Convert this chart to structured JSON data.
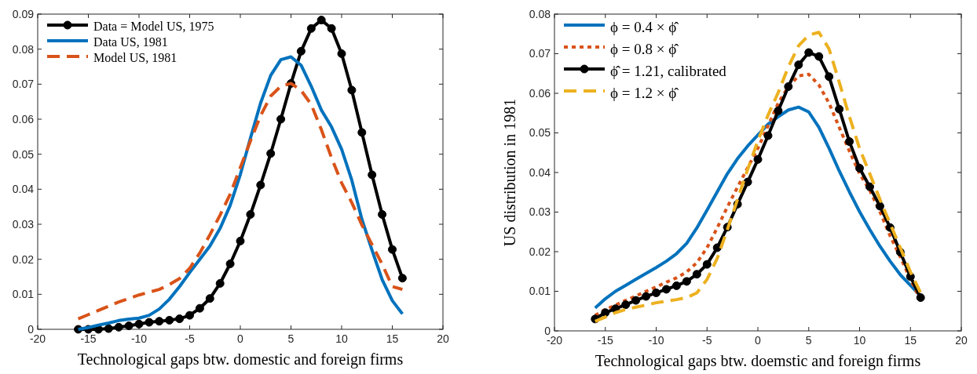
{
  "chart_data": [
    {
      "type": "line",
      "xlabel": "Technological gaps btw. domestic and foreign firms",
      "x": [
        -16,
        -15,
        -14,
        -13,
        -12,
        -11,
        -10,
        -9,
        -8,
        -7,
        -6,
        -5,
        -4,
        -3,
        -2,
        -1,
        0,
        1,
        2,
        3,
        4,
        5,
        6,
        7,
        8,
        9,
        10,
        11,
        12,
        13,
        14,
        15,
        16
      ],
      "xlim": [
        -20,
        20
      ],
      "xticks": [
        -20,
        -15,
        -10,
        -5,
        0,
        5,
        10,
        15,
        20
      ],
      "ylim": [
        0,
        0.09
      ],
      "yticks": [
        0,
        0.01,
        0.02,
        0.03,
        0.04,
        0.05,
        0.06,
        0.07,
        0.08,
        0.09
      ],
      "legend": "top left",
      "grid": false,
      "series": [
        {
          "name": "Data = Model US, 1975",
          "color": "#000000",
          "marker": "circle",
          "line_style": "solid",
          "values": [
            0,
            0,
            0,
            0.0002,
            0.0006,
            0.001,
            0.0015,
            0.002,
            0.0023,
            0.0026,
            0.003,
            0.004,
            0.006,
            0.0088,
            0.0131,
            0.0187,
            0.0252,
            0.0328,
            0.0412,
            0.0502,
            0.06,
            0.0702,
            0.0794,
            0.0859,
            0.0883,
            0.0859,
            0.0787,
            0.0683,
            0.0562,
            0.0441,
            0.0328,
            0.0228,
            0.0146
          ]
        },
        {
          "name": "Data US, 1981",
          "color": "#0072bd",
          "marker": "none",
          "line_style": "solid",
          "values": [
            0,
            0.0005,
            0.0012,
            0.0018,
            0.0025,
            0.0029,
            0.0032,
            0.004,
            0.0058,
            0.0086,
            0.0122,
            0.0162,
            0.02,
            0.0238,
            0.0288,
            0.0354,
            0.0442,
            0.0546,
            0.0646,
            0.0725,
            0.077,
            0.0778,
            0.0754,
            0.0694,
            0.0626,
            0.0578,
            0.0514,
            0.0426,
            0.0314,
            0.0226,
            0.0142,
            0.0082,
            0.0044
          ]
        },
        {
          "name": "Model US, 1981",
          "color": "#d95319",
          "marker": "none",
          "line_style": "dashed",
          "values": [
            0.003,
            0.0042,
            0.0054,
            0.0066,
            0.0078,
            0.0088,
            0.0098,
            0.0106,
            0.0114,
            0.0128,
            0.0145,
            0.0174,
            0.0218,
            0.027,
            0.0326,
            0.0386,
            0.0462,
            0.0538,
            0.061,
            0.0666,
            0.0694,
            0.0702,
            0.0682,
            0.0642,
            0.057,
            0.049,
            0.0418,
            0.0362,
            0.0298,
            0.0242,
            0.0186,
            0.0122,
            0.0114
          ]
        }
      ]
    },
    {
      "type": "line",
      "xlabel": "Technological gaps btw. doemstic and foreign firms",
      "ylabel": "US distribution in 1981",
      "x": [
        -16,
        -15,
        -14,
        -13,
        -12,
        -11,
        -10,
        -9,
        -8,
        -7,
        -6,
        -5,
        -4,
        -3,
        -2,
        -1,
        0,
        1,
        2,
        3,
        4,
        5,
        6,
        7,
        8,
        9,
        10,
        11,
        12,
        13,
        14,
        15,
        16
      ],
      "xlim": [
        -20,
        20
      ],
      "xticks": [
        -20,
        -15,
        -10,
        -5,
        0,
        5,
        10,
        15,
        20
      ],
      "ylim": [
        0,
        0.08
      ],
      "yticks": [
        0,
        0.01,
        0.02,
        0.03,
        0.04,
        0.05,
        0.06,
        0.07,
        0.08
      ],
      "legend": "top left",
      "grid": false,
      "series": [
        {
          "name": "ϕ = 0.4 × ϕ̂",
          "color": "#0072bd",
          "marker": "none",
          "line_style": "solid",
          "values": [
            0.0058,
            0.0081,
            0.01,
            0.0115,
            0.013,
            0.0145,
            0.016,
            0.0176,
            0.0195,
            0.0221,
            0.026,
            0.0305,
            0.0351,
            0.0397,
            0.0435,
            0.0467,
            0.0495,
            0.0522,
            0.0541,
            0.0558,
            0.0565,
            0.0553,
            0.0514,
            0.0461,
            0.0404,
            0.0351,
            0.0301,
            0.0256,
            0.0214,
            0.0176,
            0.0142,
            0.0115,
            0.0088
          ]
        },
        {
          "name": "ϕ = 0.8 × ϕ̂",
          "color": "#d95319",
          "marker": "none",
          "line_style": "dotted",
          "values": [
            0.0039,
            0.0054,
            0.0065,
            0.0077,
            0.0088,
            0.01,
            0.0111,
            0.0123,
            0.0134,
            0.0149,
            0.0172,
            0.021,
            0.026,
            0.0313,
            0.0363,
            0.0412,
            0.0461,
            0.0518,
            0.0575,
            0.0617,
            0.0644,
            0.0648,
            0.0621,
            0.0575,
            0.0514,
            0.0454,
            0.0397,
            0.0355,
            0.0301,
            0.024,
            0.0187,
            0.013,
            0.0077
          ]
        },
        {
          "name": "ϕ̂ = 1.21, calibrated",
          "color": "#000000",
          "marker": "circle",
          "line_style": "solid",
          "values": [
            0.003,
            0.0046,
            0.0056,
            0.0066,
            0.0077,
            0.0087,
            0.0096,
            0.0105,
            0.0114,
            0.0125,
            0.0143,
            0.0168,
            0.021,
            0.0262,
            0.032,
            0.0376,
            0.0433,
            0.0493,
            0.0556,
            0.0617,
            0.0672,
            0.0703,
            0.0693,
            0.0642,
            0.056,
            0.0478,
            0.0411,
            0.0364,
            0.0315,
            0.0261,
            0.0199,
            0.0137,
            0.0084
          ]
        },
        {
          "name": "ϕ = 1.2 × ϕ̂",
          "color": "#edb120",
          "marker": "none",
          "line_style": "dashed",
          "values": [
            0.0024,
            0.0035,
            0.0046,
            0.0054,
            0.006,
            0.0065,
            0.0071,
            0.0075,
            0.0079,
            0.0084,
            0.0096,
            0.013,
            0.0183,
            0.0256,
            0.0332,
            0.0408,
            0.048,
            0.0545,
            0.0602,
            0.0667,
            0.072,
            0.0747,
            0.0754,
            0.0712,
            0.0628,
            0.0541,
            0.0461,
            0.0397,
            0.0332,
            0.0271,
            0.021,
            0.0149,
            0.0096
          ]
        }
      ]
    }
  ]
}
